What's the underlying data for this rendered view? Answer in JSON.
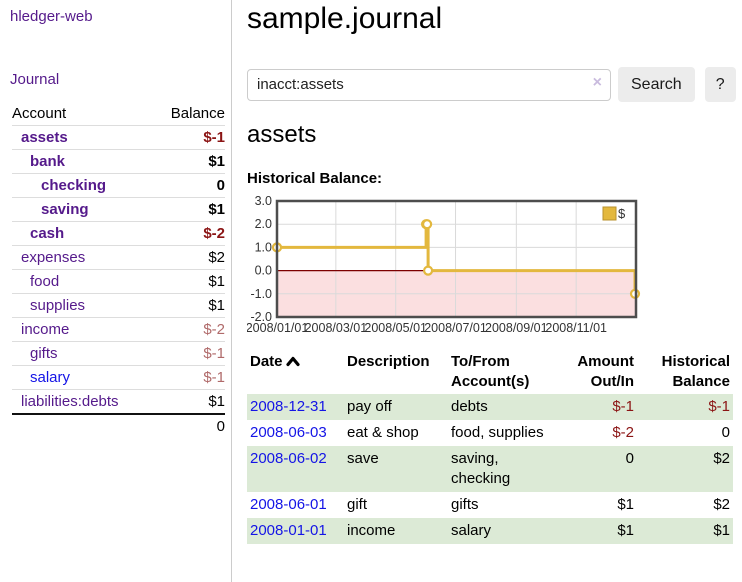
{
  "app": {
    "brand": "hledger-web"
  },
  "nav": {
    "journal": "Journal"
  },
  "sidebar": {
    "header": {
      "account": "Account",
      "balance": "Balance"
    },
    "accounts": [
      {
        "name": "assets",
        "balance": "$-1"
      },
      {
        "name": "bank",
        "balance": "$1"
      },
      {
        "name": "checking",
        "balance": "0"
      },
      {
        "name": "saving",
        "balance": "$1"
      },
      {
        "name": "cash",
        "balance": "$-2"
      },
      {
        "name": "expenses",
        "balance": "$2"
      },
      {
        "name": "food",
        "balance": "$1"
      },
      {
        "name": "supplies",
        "balance": "$1"
      },
      {
        "name": "income",
        "balance": "$-2"
      },
      {
        "name": "gifts",
        "balance": "$-1"
      },
      {
        "name": "salary",
        "balance": "$-1"
      },
      {
        "name": "liabilities:debts",
        "balance": "$1"
      }
    ],
    "total": "0"
  },
  "main": {
    "title": "sample.journal",
    "search": {
      "value": "inacct:assets",
      "clear_icon": "×",
      "button_label": "Search",
      "help_label": "?"
    },
    "account_heading": "assets",
    "chart_label": "Historical Balance:"
  },
  "chart_data": {
    "type": "line",
    "step": true,
    "title": "Historical Balance:",
    "series": [
      {
        "name": "$",
        "x": [
          "2008-01-01",
          "2008-06-01",
          "2008-06-02",
          "2008-06-03",
          "2008-12-31"
        ],
        "y": [
          1,
          2,
          2,
          0,
          -1
        ]
      }
    ],
    "xlim": [
      "2008-01-01",
      "2009-01-01"
    ],
    "ylim": [
      -2,
      3
    ],
    "yticks": [
      3,
      2,
      1,
      0,
      -1,
      -2
    ],
    "xticks": [
      {
        "date": "2008-01-01",
        "label": "2008/01/01"
      },
      {
        "date": "2008-03-01",
        "label": "2008/03/01"
      },
      {
        "date": "2008-05-01",
        "label": "2008/05/01"
      },
      {
        "date": "2008-07-01",
        "label": "2008/07/01"
      },
      {
        "date": "2008-09-01",
        "label": "2008/09/01"
      },
      {
        "date": "2008-11-01",
        "label": "2008/11/01"
      }
    ],
    "grid": true,
    "legend_position": "top-right",
    "colors": {
      "line": "#e3b83e",
      "marker_fill": "#ffffff",
      "negative_fill": "#fbdfe0",
      "zero_line": "#7d0000",
      "grid": "#dadada",
      "border": "#4d4d4d",
      "legend_border": "#b8922e"
    }
  },
  "register": {
    "headers": {
      "date": "Date",
      "description": "Description",
      "accounts": "To/From Account(s)",
      "amount": "Amount Out/In",
      "balance": "Historical Balance"
    },
    "rows": [
      {
        "date": "2008-12-31",
        "description": "pay off",
        "accounts": "debts",
        "amount": "$-1",
        "balance": "$-1"
      },
      {
        "date": "2008-06-03",
        "description": "eat & shop",
        "accounts": "food, supplies",
        "amount": "$-2",
        "balance": "0"
      },
      {
        "date": "2008-06-02",
        "description": "save",
        "accounts": "saving, checking",
        "amount": "0",
        "balance": "$2"
      },
      {
        "date": "2008-06-01",
        "description": "gift",
        "accounts": "gifts",
        "amount": "$1",
        "balance": "$2"
      },
      {
        "date": "2008-01-01",
        "description": "income",
        "accounts": "salary",
        "amount": "$1",
        "balance": "$1"
      }
    ]
  },
  "colors": {
    "link_purple": "#551a8b",
    "link_blue": "#1414e6",
    "negative": "#8b1414",
    "negative_muted": "#b06a6a",
    "row_shade": "#dcead6"
  }
}
